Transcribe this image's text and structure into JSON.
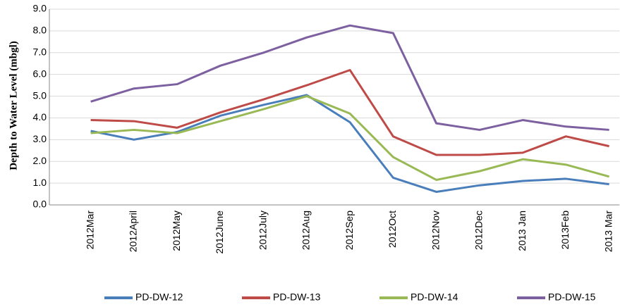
{
  "chart_data": {
    "type": "line",
    "y_label": "Depth to Water Level (mbgl)",
    "categories": [
      "2012Mar",
      "2012April",
      "2012May",
      "2012June",
      "2012July",
      "2012Aug",
      "2012Sep",
      "2012Oct",
      "2012Nov",
      "2012Dec",
      "2013 Jan",
      "2013Feb",
      "2013 Mar"
    ],
    "series": [
      {
        "name": "PD-DW-12",
        "color": "#4a7ebb",
        "values": [
          3.4,
          3.0,
          3.35,
          4.1,
          4.6,
          5.05,
          3.8,
          1.25,
          0.6,
          0.9,
          1.1,
          1.2,
          0.95
        ]
      },
      {
        "name": "PD-DW-13",
        "color": "#be4b48",
        "values": [
          3.9,
          3.85,
          3.55,
          4.25,
          4.85,
          5.5,
          6.2,
          3.15,
          2.3,
          2.3,
          2.4,
          3.15,
          2.7
        ]
      },
      {
        "name": "PD-DW-14",
        "color": "#98b954",
        "values": [
          3.3,
          3.45,
          3.3,
          3.85,
          4.4,
          5.0,
          4.2,
          2.2,
          1.15,
          1.55,
          2.1,
          1.85,
          1.3
        ]
      },
      {
        "name": "PD-DW-15",
        "color": "#7d60a0",
        "values": [
          4.75,
          5.35,
          5.55,
          6.4,
          7.0,
          7.7,
          8.25,
          7.9,
          3.75,
          3.45,
          3.9,
          3.6,
          3.45
        ]
      }
    ],
    "ylim": [
      0,
      9
    ],
    "yticks": [
      {
        "value": 0,
        "label": "0.0"
      },
      {
        "value": 1,
        "label": "1.0"
      },
      {
        "value": 2,
        "label": "2.0"
      },
      {
        "value": 3,
        "label": "3.0"
      },
      {
        "value": 4,
        "label": "4.0"
      },
      {
        "value": 5,
        "label": "5.0"
      },
      {
        "value": 6,
        "label": "6.0"
      },
      {
        "value": 7,
        "label": "7.0"
      },
      {
        "value": 8,
        "label": "8.0"
      },
      {
        "value": 9,
        "label": "9.0"
      }
    ],
    "grid": true
  }
}
